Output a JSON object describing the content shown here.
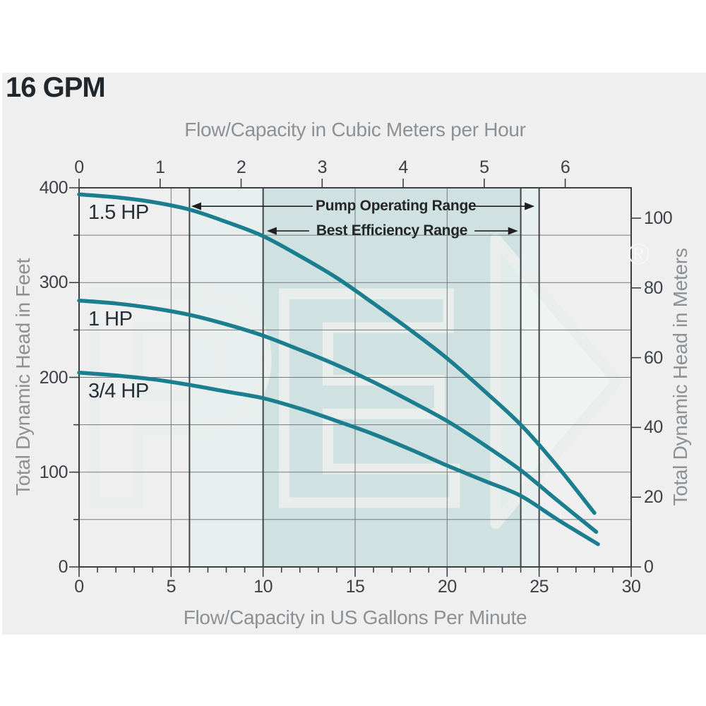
{
  "page": {
    "title": "16 GPM"
  },
  "chart_data": {
    "type": "line",
    "title": "16 GPM",
    "axes": {
      "top": {
        "label": "Flow/Capacity in Cubic Meters per Hour",
        "ticks": [
          0,
          1,
          2,
          3,
          4,
          5,
          6
        ],
        "range": [
          0,
          6.81
        ]
      },
      "bottom": {
        "label": "Flow/Capacity in US Gallons Per Minute",
        "ticks": [
          0,
          5,
          10,
          15,
          20,
          25,
          30
        ],
        "minor_tick_step": 1,
        "range": [
          0,
          30
        ]
      },
      "left": {
        "label": "Total Dynamic Head in Feet",
        "ticks": [
          0,
          100,
          200,
          300,
          400
        ],
        "minor_tick_step": 50,
        "gridline_step": 50,
        "range": [
          0,
          400
        ]
      },
      "right": {
        "label": "Total Dynamic Head in Meters",
        "ticks": [
          0,
          20,
          40,
          60,
          80,
          100
        ]
      }
    },
    "series": [
      {
        "name": "1.5 HP",
        "color": "#1b7e8e",
        "points_gpm_ft": [
          [
            0,
            393
          ],
          [
            2,
            390
          ],
          [
            4,
            385
          ],
          [
            6,
            377
          ],
          [
            8,
            364
          ],
          [
            10,
            349
          ],
          [
            12,
            328
          ],
          [
            14,
            305
          ],
          [
            16,
            278
          ],
          [
            18,
            250
          ],
          [
            20,
            220
          ],
          [
            22,
            186
          ],
          [
            24,
            150
          ],
          [
            26,
            106
          ],
          [
            28,
            57
          ]
        ]
      },
      {
        "name": "1 HP",
        "color": "#1b7e8e",
        "points_gpm_ft": [
          [
            0,
            281
          ],
          [
            2,
            278
          ],
          [
            4,
            273
          ],
          [
            6,
            266
          ],
          [
            8,
            256
          ],
          [
            10,
            244
          ],
          [
            12,
            229
          ],
          [
            14,
            213
          ],
          [
            16,
            195
          ],
          [
            18,
            175
          ],
          [
            20,
            154
          ],
          [
            22,
            129
          ],
          [
            24,
            102
          ],
          [
            26,
            70
          ],
          [
            28.1,
            37
          ]
        ]
      },
      {
        "name": "3/4 HP",
        "color": "#1b7e8e",
        "points_gpm_ft": [
          [
            0,
            205
          ],
          [
            2,
            202
          ],
          [
            4,
            198
          ],
          [
            6,
            192
          ],
          [
            8,
            185
          ],
          [
            10,
            178
          ],
          [
            12,
            167
          ],
          [
            14,
            154
          ],
          [
            16,
            140
          ],
          [
            18,
            124
          ],
          [
            20,
            107
          ],
          [
            22,
            91
          ],
          [
            24,
            75
          ],
          [
            26,
            50
          ],
          [
            28.2,
            24
          ]
        ]
      }
    ],
    "regions": [
      {
        "name": "pump-operating-range-band",
        "from_gpm": 6,
        "to_gpm": 25,
        "fill": "#e7f0ef"
      },
      {
        "name": "best-efficiency-range-band",
        "from_gpm": 10,
        "to_gpm": 24,
        "fill": "#cfe2e1"
      }
    ],
    "region_boundary_lines_gpm": [
      6,
      10,
      24,
      25
    ],
    "gridlines_gpm": [
      5,
      15,
      20
    ],
    "annotations": [
      {
        "label": "Pump Operating Range",
        "from_gpm": 6.1,
        "to_gpm": 24.75,
        "at_ft": 380.5
      },
      {
        "label": "Best Efficiency Range",
        "from_gpm": 10.2,
        "to_gpm": 23.85,
        "at_ft": 354.5
      }
    ],
    "watermark": {
      "letters": "PE",
      "registered_mark": "®"
    },
    "colors": {
      "curve": "#1b7e8e",
      "band_light": "#e7f0ef",
      "band_dark": "#cfe2e1",
      "frame": "#3c4043",
      "boundary_line": "#3f4447",
      "gridline": "#767a7c",
      "tick_text": "#3d4145",
      "axis_title_text": "#8d9193",
      "annotation_line": "#1f1f1f",
      "panel_bg": "#efeff0",
      "watermark": "#e9eeec"
    }
  }
}
